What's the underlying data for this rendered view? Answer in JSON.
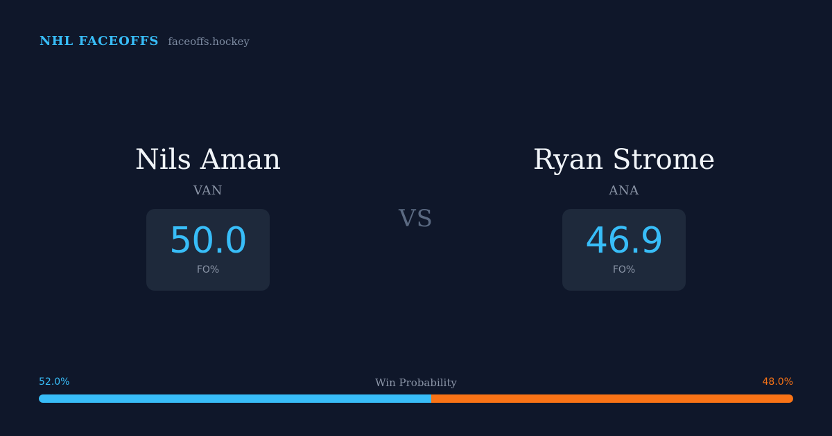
{
  "brand": {
    "name": "NHL FACEOFFS",
    "domain": "faceoffs.hockey"
  },
  "players": [
    {
      "name": "Nils Aman",
      "team": "VAN",
      "stat_value": "50.0",
      "stat_label": "FO%"
    },
    {
      "name": "Ryan Strome",
      "team": "ANA",
      "stat_value": "46.9",
      "stat_label": "FO%"
    }
  ],
  "vs_label": "VS",
  "win_probability": {
    "title": "Win Probability",
    "left_label": "52.0%",
    "right_label": "48.0%",
    "left_fraction": 0.52,
    "right_fraction": 0.48,
    "left_color": "#38bdf8",
    "right_color": "#f97316"
  }
}
